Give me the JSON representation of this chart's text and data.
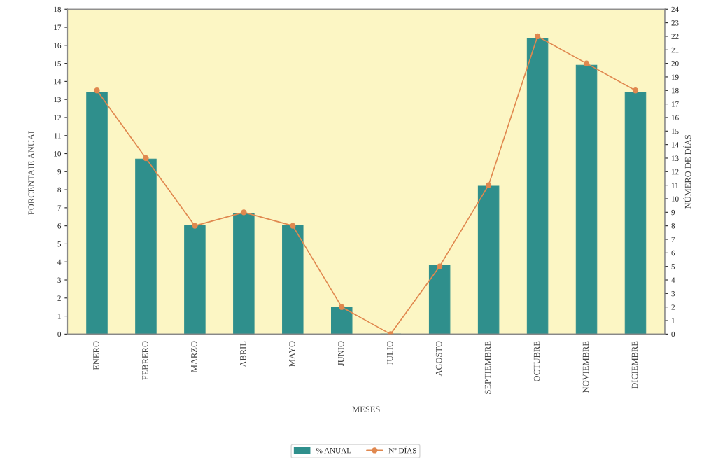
{
  "chart_data": {
    "type": "bar",
    "categories": [
      "ENERO",
      "FEBRERO",
      "MARZO",
      "ABRIL",
      "MAYO",
      "JUNIO",
      "JULIO",
      "AGOSTO",
      "SEPTIEMBRE",
      "OCTUBRE",
      "NOVIEMBRE",
      "DICIEMBRE"
    ],
    "series": [
      {
        "name": "% ANUAL",
        "color": "#2f8f8c",
        "values": [
          13.4,
          9.7,
          6.0,
          6.7,
          6.0,
          1.5,
          0,
          3.8,
          8.2,
          16.4,
          14.9,
          13.4
        ]
      },
      {
        "name": "Nº DÍAS",
        "type": "line",
        "axis": "y2",
        "color": "#e0884f",
        "marker": "circle",
        "values": [
          18,
          13,
          8,
          9,
          8,
          2,
          0,
          5,
          11,
          22,
          20,
          18
        ]
      }
    ],
    "xlabel": "MESES",
    "ylabel": "PORCENTAJE ANUAL",
    "y2label": "NÚMERO DE DÍAS",
    "ylim": [
      0,
      18
    ],
    "yticks": [
      0,
      1,
      2,
      3,
      4,
      5,
      6,
      7,
      8,
      9,
      10,
      11,
      12,
      13,
      14,
      15,
      16,
      17,
      18
    ],
    "y2lim": [
      0,
      24
    ],
    "y2ticks": [
      0,
      1,
      2,
      3,
      4,
      5,
      6,
      7,
      8,
      9,
      10,
      11,
      12,
      13,
      14,
      15,
      16,
      17,
      18,
      19,
      20,
      21,
      22,
      23,
      24
    ],
    "legend": "bottom",
    "grid": false
  }
}
